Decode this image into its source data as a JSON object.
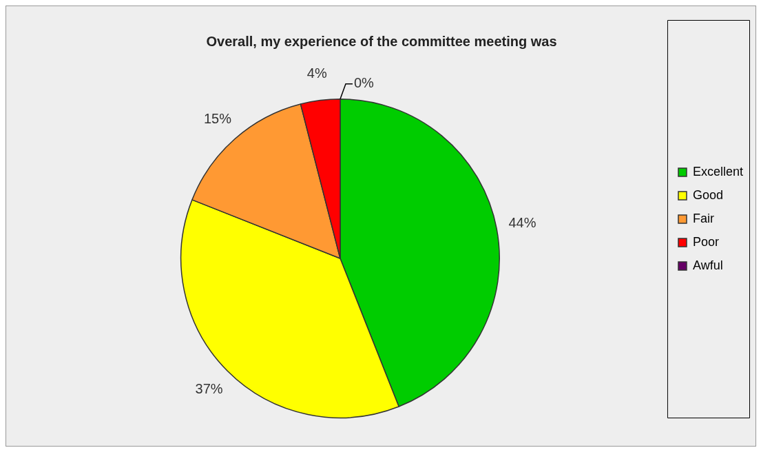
{
  "chart_data": {
    "type": "pie",
    "title": "Overall, my experience of the committee meeting was",
    "categories": [
      "Excellent",
      "Good",
      "Fair",
      "Poor",
      "Awful"
    ],
    "values": [
      44,
      37,
      15,
      4,
      0
    ],
    "value_labels": [
      "44%",
      "37%",
      "15%",
      "4%",
      "0%"
    ],
    "colors": [
      "#00cc00",
      "#ffff00",
      "#ff9933",
      "#ff0000",
      "#660066"
    ],
    "legend": "right"
  }
}
